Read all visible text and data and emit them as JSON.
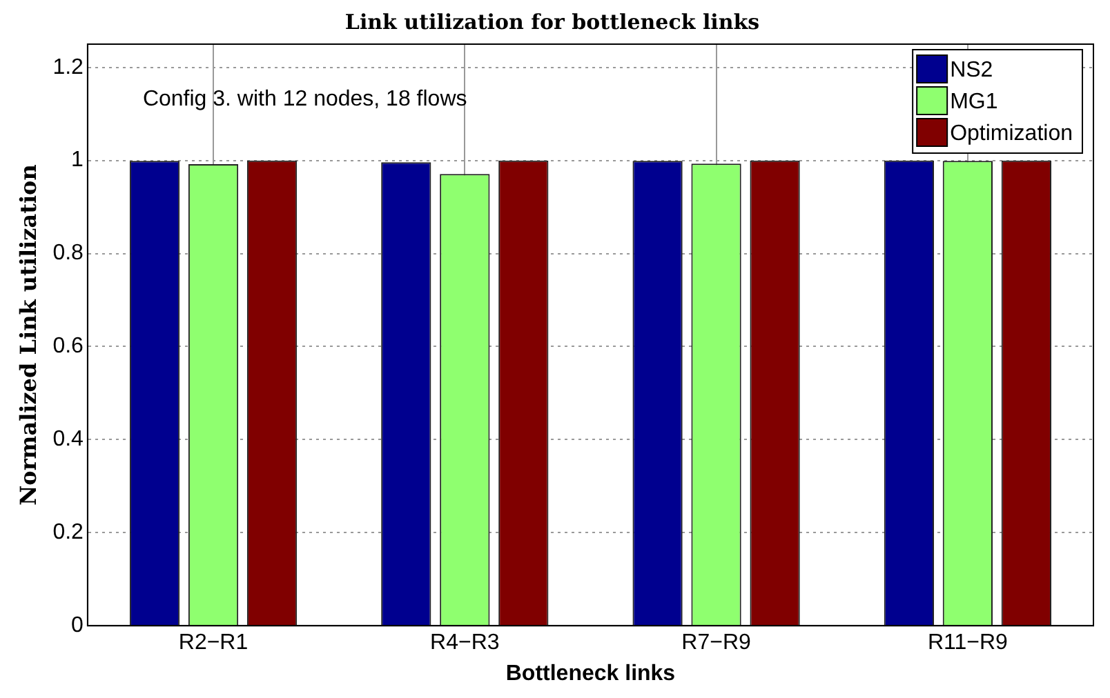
{
  "chart_data": {
    "type": "bar",
    "title": "Link utilization for bottleneck links",
    "xlabel": "Bottleneck links",
    "ylabel": "Normalized Link utilization",
    "categories": [
      "R2−R1",
      "R4−R3",
      "R7−R9",
      "R11−R9"
    ],
    "series": [
      {
        "name": "NS2",
        "color": "#00008f",
        "values": [
          0.999,
          0.996,
          0.999,
          1.0
        ]
      },
      {
        "name": "MG1",
        "color": "#8fff6f",
        "values": [
          0.992,
          0.971,
          0.993,
          0.999
        ]
      },
      {
        "name": "Optimization",
        "color": "#800000",
        "values": [
          1.0,
          1.0,
          1.0,
          1.0
        ]
      }
    ],
    "ylim": [
      0,
      1.25
    ],
    "yticks": [
      0,
      0.2,
      0.4,
      0.6,
      0.8,
      1,
      1.2
    ],
    "grid": true,
    "legend": "top right",
    "annotations": [
      "Config 3. with 12 nodes, 18 flows"
    ]
  }
}
